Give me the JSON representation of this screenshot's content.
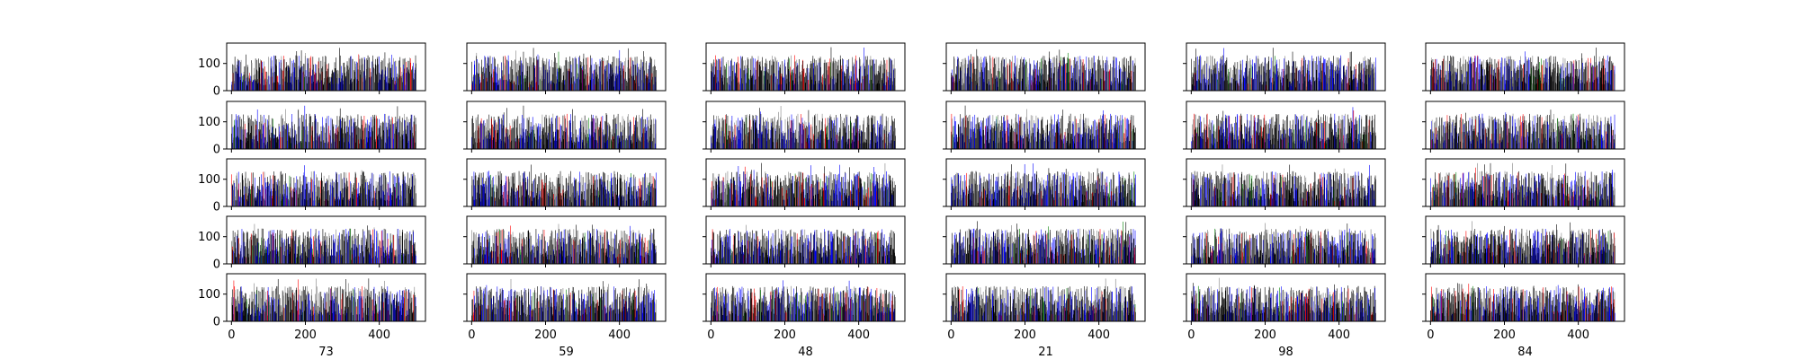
{
  "chart_data": {
    "type": "bar",
    "layout": {
      "rows": 5,
      "columns": 6,
      "sharey": true,
      "sharex": true
    },
    "column_labels": [
      "73",
      "59",
      "48",
      "21",
      "98",
      "84"
    ],
    "x": {
      "range": [
        -13,
        525
      ],
      "ticks": [
        0,
        200,
        400
      ],
      "tick_labels": [
        "0",
        "200",
        "400"
      ],
      "n_bars": 500
    },
    "y": {
      "range": [
        0,
        175
      ],
      "ticks": [
        0,
        100
      ],
      "tick_labels": [
        "0",
        "100"
      ]
    },
    "bar_colors": {
      "dominant": "#000000",
      "alternate": "#808080",
      "accent": "#0000ff",
      "highlight": "#ff0000",
      "rare": "#008000"
    },
    "value_profile": {
      "typical_low": 20,
      "typical_high": 130,
      "max_observed": 160
    },
    "grid": false,
    "legend": "none"
  }
}
